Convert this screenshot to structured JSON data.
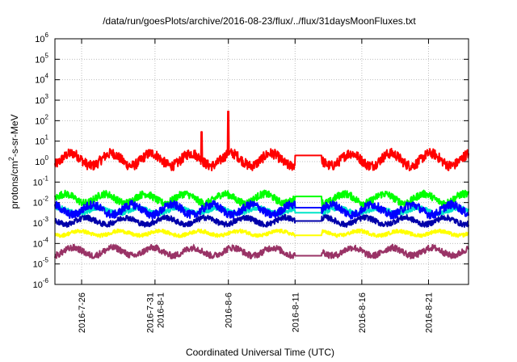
{
  "chart_data": {
    "type": "line",
    "title": "/data/run/goesPlots/archive/2016-08-23/flux/../flux/31daysMoonFluxes.txt",
    "xlabel": "Coordinated Universal Time (UTC)",
    "ylabel": "protons/cm²-s-sr-MeV",
    "y_scale": "log",
    "grid": true,
    "ylim_exponents": [
      -6,
      6
    ],
    "yticks": [
      {
        "base": "10",
        "exp": "-6",
        "value": -6
      },
      {
        "base": "10",
        "exp": "-5",
        "value": -5
      },
      {
        "base": "10",
        "exp": "-4",
        "value": -4
      },
      {
        "base": "10",
        "exp": "-3",
        "value": -3
      },
      {
        "base": "10",
        "exp": "-2",
        "value": -2
      },
      {
        "base": "10",
        "exp": "-1",
        "value": -1
      },
      {
        "base": "10",
        "exp": "0",
        "value": 0
      },
      {
        "base": "10",
        "exp": "1",
        "value": 1
      },
      {
        "base": "10",
        "exp": "2",
        "value": 2
      },
      {
        "base": "10",
        "exp": "3",
        "value": 3
      },
      {
        "base": "10",
        "exp": "4",
        "value": 4
      },
      {
        "base": "10",
        "exp": "5",
        "value": 5
      },
      {
        "base": "10",
        "exp": "6",
        "value": 6
      }
    ],
    "xlim": [
      "2016-07-24",
      "2016-08-24"
    ],
    "xticks": [
      {
        "lines": [
          "2016-7-26"
        ],
        "date": "2016-07-26"
      },
      {
        "lines": [
          "2016-7-31",
          "2016-8-1"
        ],
        "date": "2016-07-31T12:00"
      },
      {
        "lines": [
          "2016-8-6"
        ],
        "date": "2016-08-06"
      },
      {
        "lines": [
          "2016-8-11"
        ],
        "date": "2016-08-11"
      },
      {
        "lines": [
          "2016-8-16"
        ],
        "date": "2016-08-16"
      },
      {
        "lines": [
          "2016-8-21"
        ],
        "date": "2016-08-21"
      }
    ],
    "series_note": "approximate log10 flux levels per day, read from plot",
    "series": [
      {
        "color": "#ff0000",
        "base": 0.1,
        "amp": 0.55,
        "gap_value": 0.3,
        "peaks": [
          {
            "date": "2016-08-06",
            "value": 2.45
          },
          {
            "date": "2016-08-04",
            "value": 1.45
          }
        ]
      },
      {
        "color": "#00ff00",
        "base": -1.8,
        "amp": 0.4,
        "gap_value": -1.7
      },
      {
        "color": "#00e5c8",
        "base": -2.4,
        "amp": 0.25,
        "gap_value": -2.5
      },
      {
        "color": "#0000ff",
        "base": -2.35,
        "amp": 0.45,
        "gap_value": -2.25
      },
      {
        "color": "#0000aa",
        "base": -2.9,
        "amp": 0.3,
        "gap_value": -2.9
      },
      {
        "color": "#ffff00",
        "base": -3.5,
        "amp": 0.2,
        "gap_value": -3.6
      },
      {
        "color": "#993366",
        "base": -4.4,
        "amp": 0.35,
        "gap_value": -4.6
      }
    ],
    "data_gap": [
      "2016-08-11",
      "2016-08-13"
    ]
  }
}
